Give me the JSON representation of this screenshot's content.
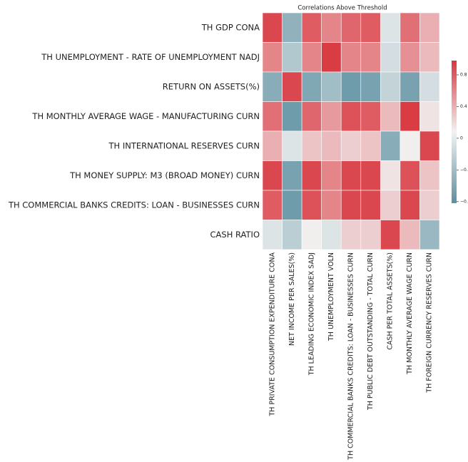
{
  "chart_data": {
    "type": "heatmap",
    "title": "Correlations Above Threshold",
    "rows": [
      "TH GDP CONA",
      "TH UNEMPLOYMENT - RATE OF UNEMPLOYMENT NADJ",
      "RETURN ON ASSETS(%)",
      "TH MONTHLY AVERAGE WAGE - MANUFACTURING CURN",
      "TH INTERNATIONAL RESERVES CURN",
      "TH MONEY SUPPLY: M3 (BROAD MONEY) CURN",
      "TH COMMERCIAL BANKS CREDITS: LOAN - BUSINESSES CURN",
      "CASH RATIO"
    ],
    "columns": [
      "TH PRIVATE CONSUMPTION EXPENDITURE CONA",
      "NET INCOME PER SALES(%)",
      "TH LEADING ECONOMIC INDEX SADJ",
      "TH UNEMPLOYMENT VOLN",
      "TH COMMERCIAL BANKS CREDITS: LOAN - BUSINESSES CURN",
      "TH PUBLIC DEBT OUTSTANDING - TOTAL CURN",
      "CASH PER TOTAL ASSETS(%)",
      "TH MONTHLY AVERAGE WAGE CURN",
      "TH FOREIGN CURRENCY RESERVES CURN"
    ],
    "values": [
      [
        0.9,
        -0.5,
        0.8,
        0.6,
        0.75,
        0.8,
        -0.05,
        0.7,
        0.4
      ],
      [
        0.6,
        -0.3,
        0.6,
        0.95,
        0.6,
        0.6,
        -0.1,
        0.55,
        0.35
      ],
      [
        -0.55,
        0.9,
        -0.6,
        -0.4,
        -0.7,
        -0.65,
        -0.2,
        -0.65,
        -0.1
      ],
      [
        0.7,
        -0.7,
        0.75,
        0.5,
        0.85,
        0.8,
        0.35,
        0.95,
        0.15
      ],
      [
        0.4,
        -0.05,
        0.3,
        0.35,
        0.25,
        0.3,
        -0.55,
        0.1,
        0.9
      ],
      [
        0.9,
        -0.65,
        0.9,
        0.6,
        0.9,
        0.9,
        0.15,
        0.85,
        0.3
      ],
      [
        0.8,
        -0.7,
        0.85,
        0.6,
        0.9,
        0.9,
        0.25,
        0.9,
        0.25
      ],
      [
        -0.05,
        -0.25,
        0.1,
        -0.05,
        0.25,
        0.25,
        0.9,
        0.35,
        -0.45
      ]
    ],
    "cmap": [
      "#5b8fa0",
      "#f2f2f2",
      "#d9363e"
    ],
    "clim": [
      -0.82,
      0.98
    ],
    "cticks": [
      0.8,
      0.4,
      0.0,
      {
        "value": -0.4,
        "label": "−0.4"
      },
      {
        "value": -0.8,
        "label": "−0.8"
      }
    ]
  }
}
